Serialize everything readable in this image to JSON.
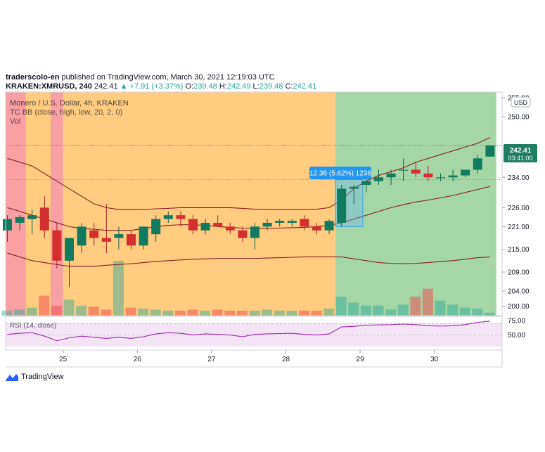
{
  "header": {
    "author": "traderscolo-en",
    "published": "published on TradingView.com, March 30, 2021 12:19:03 UTC",
    "symbol": "KRAKEN:XMRUSD, 240",
    "last": "242.41",
    "change": "▲ +7.91 (+3.37%)",
    "o_label": "O:",
    "o": "239.48",
    "h_label": "H:",
    "h": "242.49",
    "l_label": "L:",
    "l": "239.48",
    "c_label": "C:",
    "c": "242.41"
  },
  "legend": {
    "title": "Monero / U.S. Dollar, 4h, KRAKEN",
    "bb": "TC BB (close, high, low, 20, 2, 0)",
    "vol": "Vol",
    "rsi": "RSI (14, close)"
  },
  "price_axis": {
    "currency": "USD",
    "last_price": "242.41",
    "countdown": "03:41:00",
    "measure_label": "12.36 (5.62%) 1236"
  },
  "brand": {
    "name": "TradingView"
  },
  "colors": {
    "up": "#26a69a",
    "down": "#ef5350",
    "band": "#8b1e1e",
    "rsi": "#9c27b0",
    "bg_orange": "#ffcc80",
    "bg_green": "#a5d6a7",
    "bg_red": "#f8a0a4"
  },
  "chart_data": {
    "type": "candlestick",
    "title": "Monero / U.S. Dollar, 4h, KRAKEN",
    "x_ticks": [
      "25",
      "26",
      "27",
      "28",
      "29",
      "30"
    ],
    "y_ticks": [
      200,
      204,
      209,
      215,
      221,
      226,
      234,
      242.41,
      250,
      255
    ],
    "y_tick_labels": [
      "200.00",
      "204.00",
      "209.00",
      "215.00",
      "221.00",
      "226.00",
      "234.00",
      "242.41",
      "250.00",
      "255.00"
    ],
    "ylim": [
      197.5,
      256.5
    ],
    "candles": [
      {
        "o": 220,
        "h": 224,
        "l": 217,
        "c": 223
      },
      {
        "o": 222,
        "h": 224,
        "l": 220,
        "c": 223.5
      },
      {
        "o": 223,
        "h": 225.5,
        "l": 219,
        "c": 224
      },
      {
        "o": 226,
        "h": 229,
        "l": 218,
        "c": 220
      },
      {
        "o": 220,
        "h": 222,
        "l": 210,
        "c": 212
      },
      {
        "o": 212,
        "h": 218,
        "l": 205,
        "c": 218
      },
      {
        "o": 216,
        "h": 222,
        "l": 214,
        "c": 221
      },
      {
        "o": 220,
        "h": 222,
        "l": 216,
        "c": 218
      },
      {
        "o": 218,
        "h": 227,
        "l": 214,
        "c": 217
      },
      {
        "o": 218,
        "h": 221,
        "l": 215,
        "c": 219
      },
      {
        "o": 219,
        "h": 220,
        "l": 215,
        "c": 216
      },
      {
        "o": 216,
        "h": 221,
        "l": 215,
        "c": 221
      },
      {
        "o": 219,
        "h": 224,
        "l": 217,
        "c": 223
      },
      {
        "o": 223,
        "h": 225,
        "l": 222,
        "c": 224
      },
      {
        "o": 224,
        "h": 225,
        "l": 221,
        "c": 223
      },
      {
        "o": 223,
        "h": 224,
        "l": 219,
        "c": 220
      },
      {
        "o": 220,
        "h": 223,
        "l": 219,
        "c": 222
      },
      {
        "o": 222,
        "h": 224,
        "l": 221,
        "c": 221
      },
      {
        "o": 221,
        "h": 222,
        "l": 219,
        "c": 220
      },
      {
        "o": 220,
        "h": 221,
        "l": 217,
        "c": 218
      },
      {
        "o": 218,
        "h": 222,
        "l": 215,
        "c": 221
      },
      {
        "o": 221,
        "h": 223,
        "l": 220,
        "c": 222
      },
      {
        "o": 222,
        "h": 223,
        "l": 221,
        "c": 222.5
      },
      {
        "o": 222,
        "h": 223,
        "l": 221,
        "c": 222.5
      },
      {
        "o": 223,
        "h": 224,
        "l": 220,
        "c": 221
      },
      {
        "o": 221,
        "h": 222,
        "l": 219,
        "c": 220
      },
      {
        "o": 220,
        "h": 223,
        "l": 219,
        "c": 222.5
      },
      {
        "o": 222,
        "h": 232,
        "l": 221,
        "c": 231
      },
      {
        "o": 231,
        "h": 232,
        "l": 227,
        "c": 231.5
      },
      {
        "o": 232,
        "h": 235,
        "l": 230,
        "c": 233
      },
      {
        "o": 233,
        "h": 236,
        "l": 232,
        "c": 234
      },
      {
        "o": 234,
        "h": 236,
        "l": 232,
        "c": 235
      },
      {
        "o": 236,
        "h": 239,
        "l": 233,
        "c": 236
      },
      {
        "o": 236,
        "h": 238,
        "l": 234,
        "c": 235
      },
      {
        "o": 235,
        "h": 237,
        "l": 233,
        "c": 234
      },
      {
        "o": 234,
        "h": 235,
        "l": 233,
        "c": 234
      },
      {
        "o": 234,
        "h": 236,
        "l": 233,
        "c": 234.5
      },
      {
        "o": 234.5,
        "h": 236,
        "l": 234,
        "c": 236
      },
      {
        "o": 236,
        "h": 240,
        "l": 235,
        "c": 239
      },
      {
        "o": 239.48,
        "h": 242.49,
        "l": 239.48,
        "c": 242.41
      }
    ],
    "bb_upper": [
      239,
      238,
      237,
      235,
      233,
      231,
      229,
      227,
      226,
      225.5,
      225.5,
      225.5,
      225.7,
      225.8,
      226,
      226,
      226,
      226,
      226,
      225.8,
      225.6,
      225.5,
      225.5,
      225.5,
      225.5,
      225.6,
      226,
      228,
      231,
      233,
      234.5,
      235.5,
      236.5,
      238,
      239,
      240,
      241,
      242,
      243,
      244.5
    ],
    "bb_middle": [
      226,
      225,
      224,
      223,
      222,
      221,
      220.5,
      220.3,
      220,
      220,
      220,
      220.5,
      221,
      221.3,
      221.5,
      221.5,
      221.3,
      221,
      220.8,
      220.6,
      220.5,
      220.5,
      220.6,
      220.7,
      220.8,
      221,
      221.3,
      222,
      223,
      224,
      225,
      226,
      226.8,
      227.5,
      228,
      228.6,
      229.2,
      230,
      230.8,
      231.6
    ],
    "bb_lower": [
      214,
      213,
      212,
      211.5,
      211,
      210.5,
      210.5,
      210.5,
      210.8,
      211,
      211.2,
      211.5,
      211.8,
      212,
      212.2,
      212.4,
      212.5,
      212.6,
      212.6,
      212.6,
      212.6,
      212.7,
      212.8,
      212.9,
      213,
      213,
      213,
      213,
      212.5,
      212,
      211.5,
      211.3,
      211.2,
      211.3,
      211.5,
      211.8,
      212,
      212.4,
      212.8,
      213
    ],
    "volume": [
      0.5,
      0.6,
      0.8,
      2.0,
      1.0,
      1.6,
      1.0,
      0.9,
      0.6,
      5.5,
      0.8,
      0.7,
      0.6,
      0.5,
      0.5,
      0.6,
      0.5,
      0.6,
      0.5,
      0.5,
      0.5,
      0.6,
      0.5,
      0.5,
      0.5,
      0.5,
      0.7,
      1.9,
      1.3,
      1.0,
      1.0,
      0.6,
      1.1,
      1.9,
      2.7,
      1.5,
      1.1,
      0.8,
      0.7,
      0.3
    ],
    "rsi": [
      51,
      53,
      54,
      48,
      40,
      45,
      48,
      46,
      44,
      46,
      44,
      47,
      52,
      54,
      53,
      50,
      52,
      51,
      50,
      47,
      51,
      52,
      52.5,
      53,
      51,
      50,
      52,
      64,
      65,
      67,
      67.5,
      68,
      69,
      68,
      66,
      65.5,
      66,
      68,
      72,
      74
    ],
    "rsi_ticks": [
      50,
      75
    ],
    "rsi_tick_labels": [
      "50.00",
      "75.00"
    ],
    "rsi_band": [
      30,
      70
    ],
    "measure": {
      "from": 221.0,
      "to": 233.4,
      "label": "12.36 (5.62%) 1236"
    },
    "backgrounds": [
      {
        "from_candle": 0,
        "to_candle": 2,
        "state": "red"
      },
      {
        "from_candle": 2,
        "to_candle": 8,
        "state": "orange"
      },
      {
        "from_candle": 4,
        "to_candle": 5,
        "state": "red"
      },
      {
        "from_candle": 8,
        "to_candle": 27,
        "state": "orange"
      },
      {
        "from_candle": 27,
        "to_candle": 40,
        "state": "green"
      }
    ]
  }
}
